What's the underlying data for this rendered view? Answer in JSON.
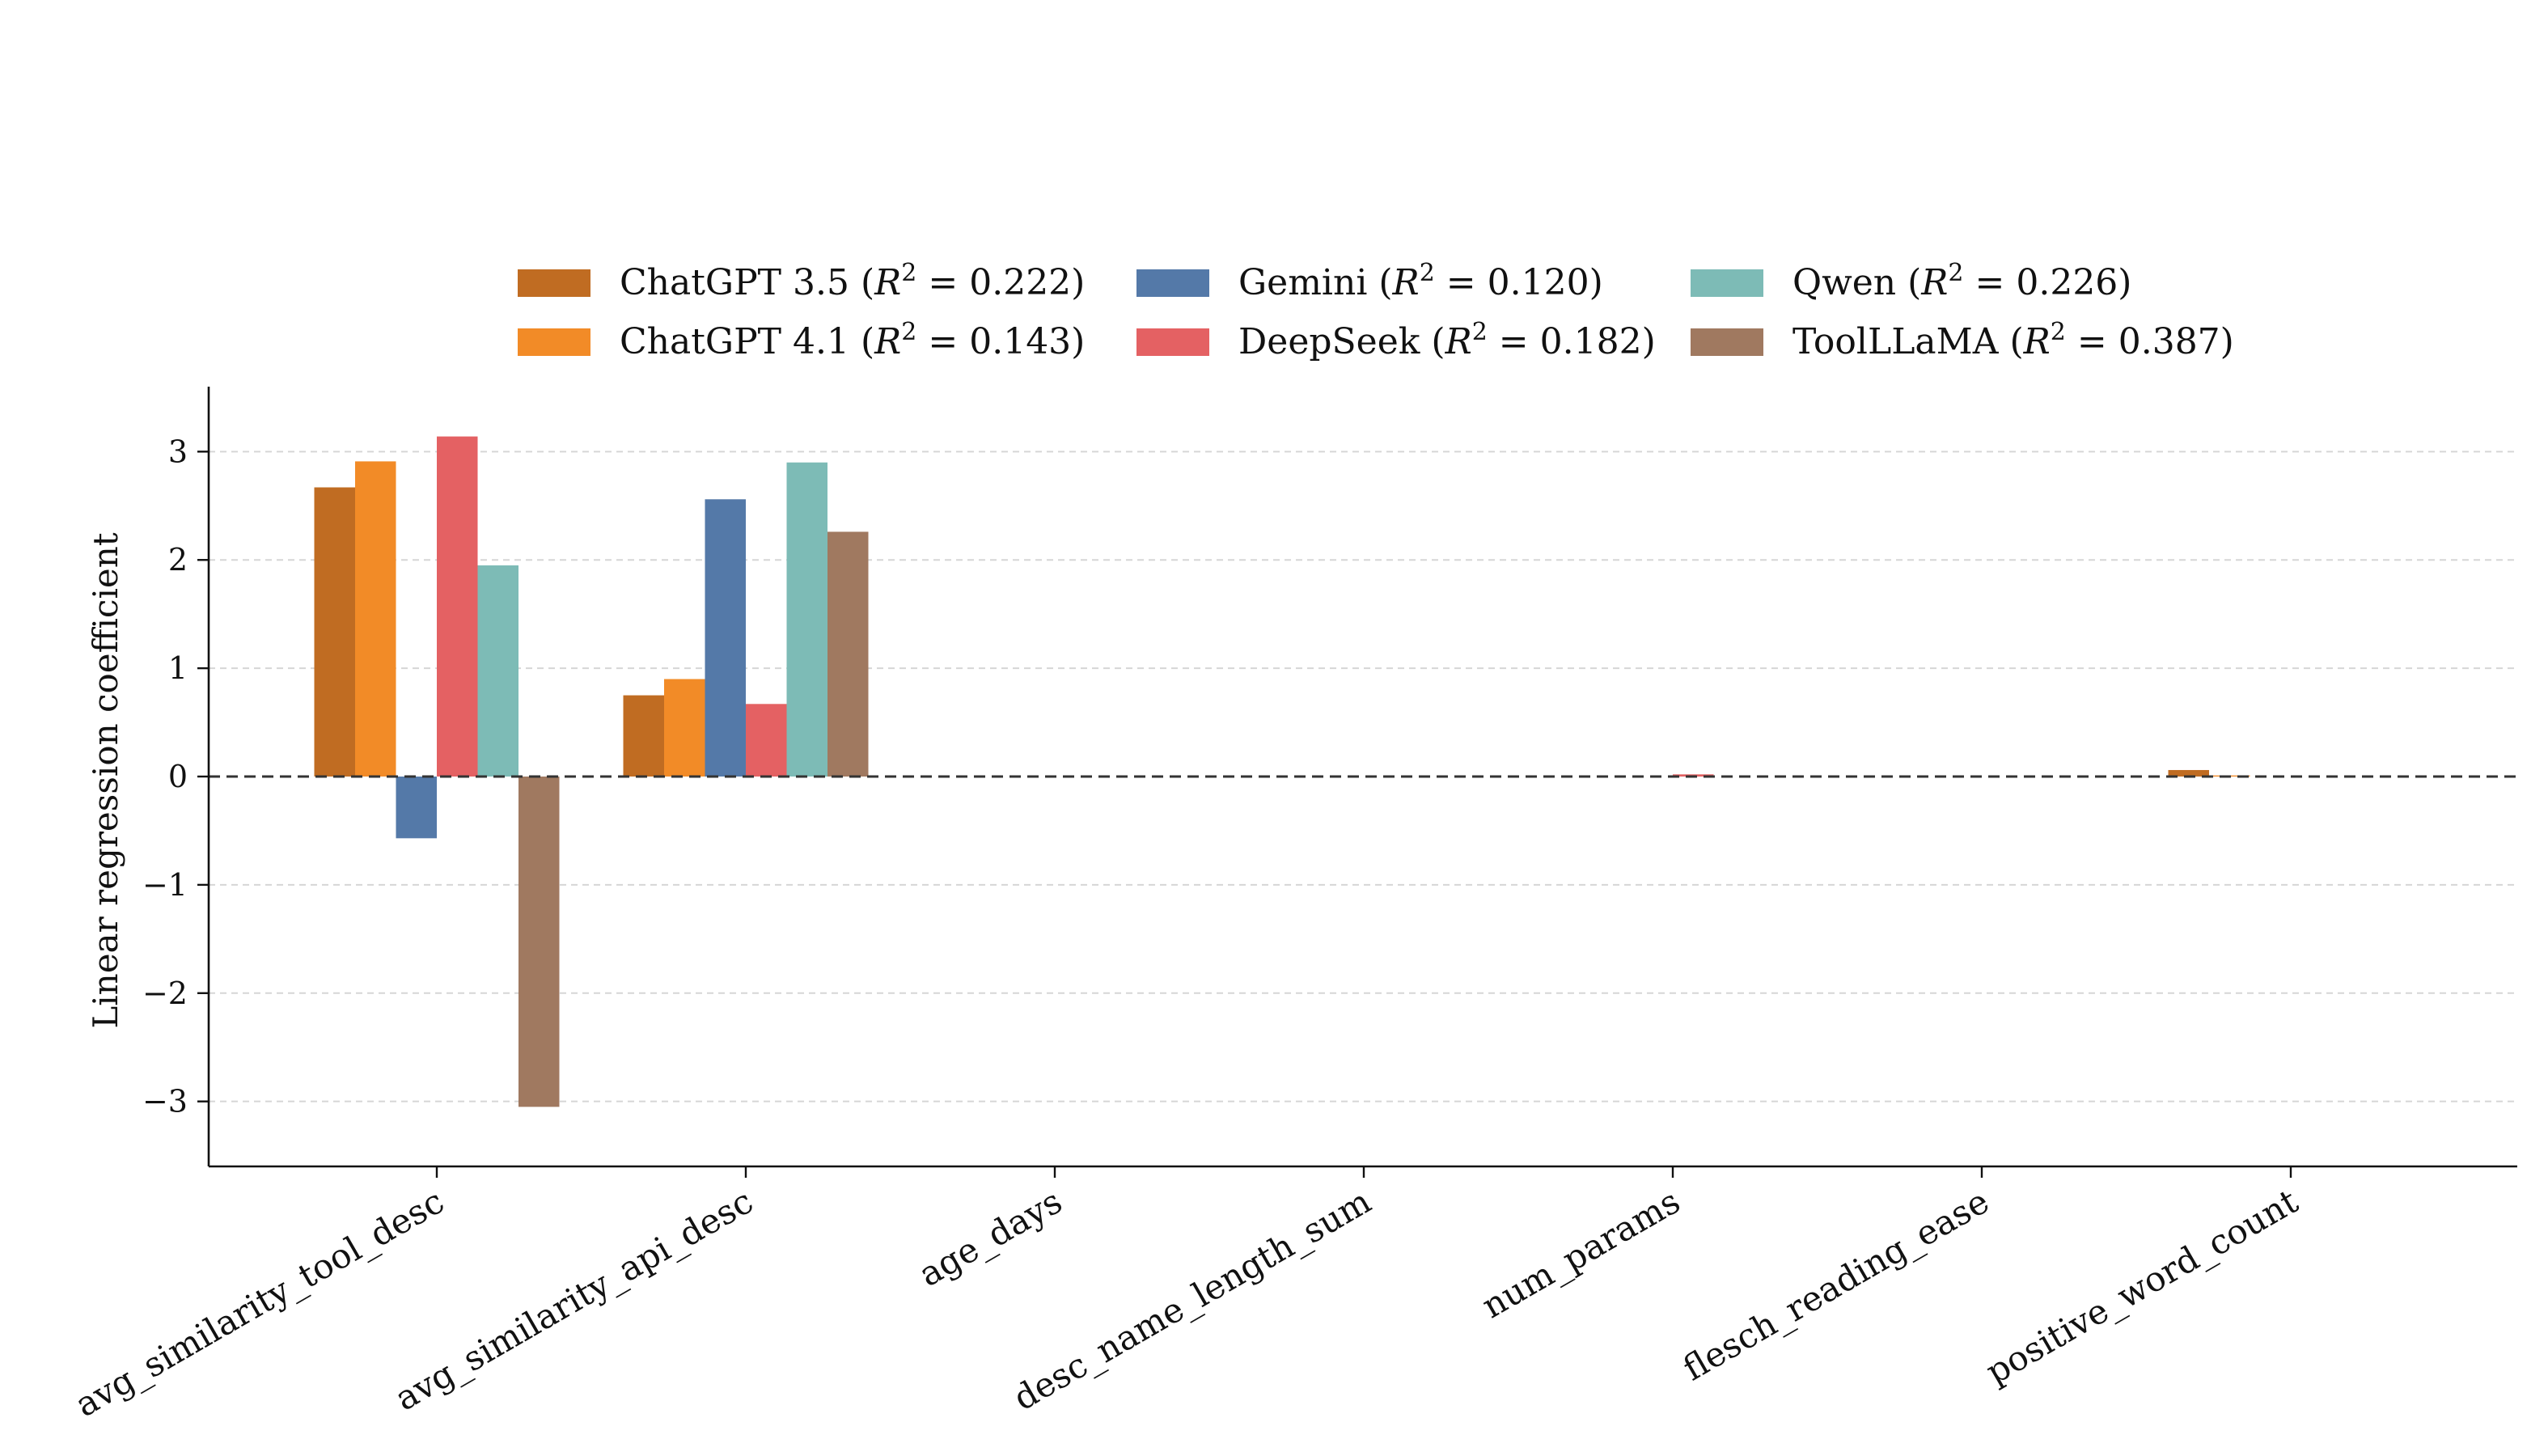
{
  "chart_data": {
    "type": "bar",
    "ylabel": "Linear regression coefficient",
    "xlabel": "",
    "title": "",
    "ylim": [
      -3.6,
      3.6
    ],
    "yticks": [
      -3,
      -2,
      -1,
      0,
      1,
      2,
      3
    ],
    "ytick_labels": [
      "−3",
      "−2",
      "−1",
      "0",
      "1",
      "2",
      "3"
    ],
    "grid": "horizontal dashed",
    "zero_line": "dashed",
    "legend_position": "top-center",
    "categories": [
      "avg_similarity_tool_desc",
      "avg_similarity_api_desc",
      "age_days",
      "desc_name_length_sum",
      "num_params",
      "flesch_reading_ease",
      "positive_word_count"
    ],
    "series": [
      {
        "name": "ChatGPT 3.5 (R² = 0.222)",
        "model": "ChatGPT 3.5",
        "r2": "0.222",
        "color": "#c06c22",
        "values": [
          2.67,
          0.75,
          0.0,
          0.0,
          0.0,
          0.0,
          0.06
        ]
      },
      {
        "name": "ChatGPT 4.1 (R² = 0.143)",
        "model": "ChatGPT 4.1",
        "r2": "0.143",
        "color": "#f28b27",
        "values": [
          2.91,
          0.9,
          0.0,
          0.0,
          0.0,
          0.0,
          0.01
        ]
      },
      {
        "name": "Gemini (R² = 0.120)",
        "model": "Gemini",
        "r2": "0.120",
        "color": "#5479a8",
        "values": [
          -0.57,
          2.56,
          0.0,
          0.0,
          0.0,
          0.0,
          0.0
        ]
      },
      {
        "name": "DeepSeek (R² = 0.182)",
        "model": "DeepSeek",
        "r2": "0.182",
        "color": "#e46163",
        "values": [
          3.14,
          0.67,
          0.0,
          0.0,
          0.02,
          0.0,
          0.0
        ]
      },
      {
        "name": "Qwen (R² = 0.226)",
        "model": "Qwen",
        "r2": "0.226",
        "color": "#7dbbb6",
        "values": [
          1.95,
          2.9,
          0.0,
          0.0,
          0.0,
          0.0,
          0.0
        ]
      },
      {
        "name": "ToolLLaMA (R² = 0.387)",
        "model": "ToolLLaMA",
        "r2": "0.387",
        "color": "#a07960",
        "values": [
          -3.05,
          2.26,
          0.0,
          0.0,
          0.0,
          0.0,
          0.0
        ]
      }
    ]
  }
}
